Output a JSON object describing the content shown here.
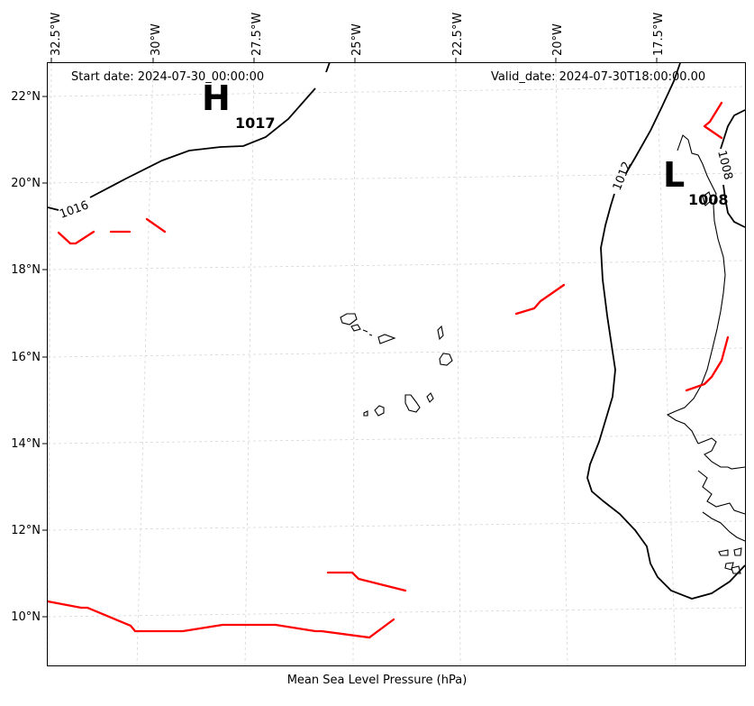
{
  "header": {
    "start_date": "Start date: 2024-07-30_00:00:00",
    "valid_date": "Valid_date: 2024-07-30T18:00:00.00"
  },
  "footer": {
    "caption": "Mean Sea Level Pressure (hPa)"
  },
  "axes": {
    "longitude_labels": [
      "32.5°W",
      "30°W",
      "27.5°W",
      "25°W",
      "22.5°W",
      "20°W",
      "17.5°W"
    ],
    "latitude_labels": [
      "22°N",
      "20°N",
      "18°N",
      "16°N",
      "14°N",
      "12°N",
      "10°N"
    ],
    "gridlines": true
  },
  "pressure_systems": [
    {
      "symbol": "H",
      "value": "1017"
    },
    {
      "symbol": "L",
      "value": "1008"
    }
  ],
  "isobar_labels": [
    "1016",
    "1012",
    "1008"
  ],
  "colors": {
    "isobar": "#000000",
    "front": "#ff0000",
    "coastline": "#000000",
    "grid": "#d9d9d9"
  }
}
